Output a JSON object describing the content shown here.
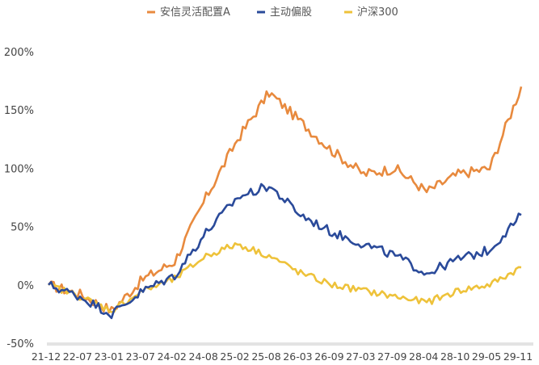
{
  "chart_data": {
    "type": "line",
    "title": "",
    "xlabel": "",
    "ylabel": "",
    "legend_position": "top-center",
    "grid": false,
    "ylim": [
      -50,
      200
    ],
    "y_ticks": [
      "-50%",
      "0%",
      "50%",
      "100%",
      "150%",
      "200%"
    ],
    "y_tick_values": [
      -50,
      0,
      50,
      100,
      150,
      200
    ],
    "categories": [
      "21-12",
      "22-07",
      "23-01",
      "23-07",
      "24-02",
      "24-08",
      "25-02",
      "25-08",
      "26-03",
      "26-09",
      "27-03",
      "27-09",
      "28-04",
      "28-10",
      "29-05",
      "29-11"
    ],
    "series": [
      {
        "name": "安信灵活配置A",
        "color": "#E88A3E",
        "values": [
          0,
          -8,
          -22,
          5,
          20,
          75,
          125,
          165,
          140,
          115,
          95,
          100,
          80,
          95,
          100,
          170
        ]
      },
      {
        "name": "主动偏股",
        "color": "#2A4A9A",
        "values": [
          0,
          -10,
          -25,
          -5,
          8,
          45,
          75,
          85,
          60,
          45,
          35,
          25,
          10,
          22,
          30,
          60
        ]
      },
      {
        "name": "沪深300",
        "color": "#EEC23A",
        "values": [
          0,
          -10,
          -22,
          -5,
          5,
          25,
          35,
          25,
          10,
          0,
          -5,
          -10,
          -15,
          -5,
          0,
          15
        ]
      }
    ]
  }
}
